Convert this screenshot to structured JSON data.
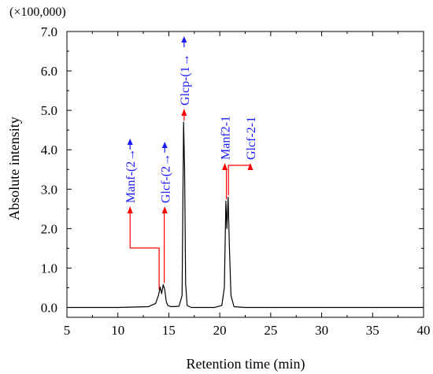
{
  "chart_data": {
    "type": "line",
    "title": "",
    "xlabel": "Retention time (min)",
    "ylabel": "Absolute intensity",
    "y_multiplier": "(×100,000)",
    "xlim": [
      5,
      40
    ],
    "ylim": [
      -0.25,
      7.0
    ],
    "xticks": [
      "5",
      "10",
      "15",
      "20",
      "25",
      "30",
      "35",
      "40"
    ],
    "yticks": [
      "0.0",
      "1.0",
      "2.0",
      "3.0",
      "4.0",
      "5.0",
      "6.0",
      "7.0"
    ],
    "grid": false,
    "legend": "none",
    "series": [
      {
        "x": [
          5,
          10,
          13,
          13.7,
          14.0,
          14.15,
          14.3,
          14.45,
          14.6,
          14.75,
          14.9,
          15.2,
          16.0,
          16.3,
          16.45,
          16.55,
          16.65,
          16.8,
          17.2,
          19.5,
          20.2,
          20.45,
          20.6,
          20.7,
          20.82,
          20.95,
          21.1,
          21.4,
          22.5,
          30,
          40
        ],
        "y": [
          0.0,
          0.0,
          0.02,
          0.1,
          0.32,
          0.52,
          0.35,
          0.58,
          0.45,
          0.15,
          0.05,
          0.02,
          0.03,
          0.3,
          4.7,
          3.5,
          0.6,
          0.05,
          0.0,
          0.0,
          0.05,
          0.5,
          2.7,
          2.0,
          2.8,
          1.5,
          0.3,
          0.02,
          0.0,
          0.0,
          0.0
        ],
        "color": "#000000"
      }
    ],
    "annotations": [
      {
        "text": "Manf-(2→",
        "x": 14.05,
        "y": 0.42,
        "text_x": 11.2
      },
      {
        "text": "Glcf-(2→",
        "x": 14.55,
        "y": 0.58,
        "text_x": 14.6
      },
      {
        "text": "Glcp-(1→",
        "x": 16.5,
        "y": 4.7,
        "text_x": 16.5
      },
      {
        "text": "Manf2-1",
        "x": 20.65,
        "y": 2.7,
        "text_x": 20.5
      },
      {
        "text": "Glcf-2-1",
        "x": 20.85,
        "y": 2.8,
        "text_x": 23.0
      }
    ],
    "colors": {
      "label": "#1a1aff",
      "pointer": "#ff0000",
      "arrow_head": "#1a1aff",
      "line": "#000000"
    }
  }
}
